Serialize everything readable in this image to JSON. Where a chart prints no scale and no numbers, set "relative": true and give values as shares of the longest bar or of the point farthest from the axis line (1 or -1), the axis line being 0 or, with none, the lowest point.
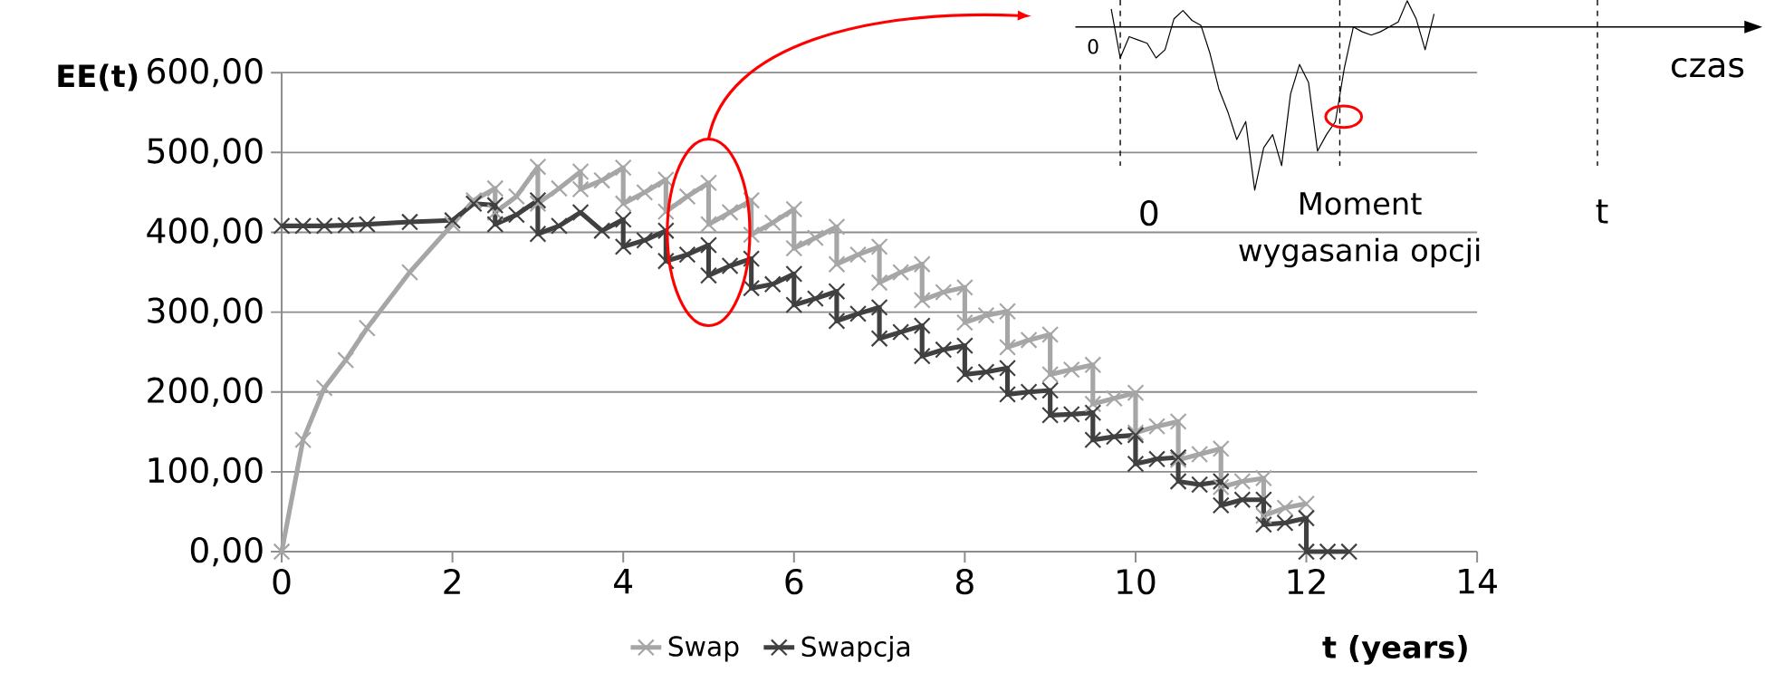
{
  "chart_data": [
    {
      "type": "line",
      "xlabel": "t (years)",
      "ylabel": "EE(t)",
      "xlim": [
        0,
        14
      ],
      "xticks": [
        0,
        2,
        4,
        6,
        8,
        10,
        12,
        14
      ],
      "ylim": [
        0,
        600
      ],
      "yticks": [
        {
          "value": 0,
          "label": "0,00"
        },
        {
          "value": 100,
          "label": "100,00"
        },
        {
          "value": 200,
          "label": "200,00"
        },
        {
          "value": 300,
          "label": "300,00"
        },
        {
          "value": 400,
          "label": "400,00"
        },
        {
          "value": 500,
          "label": "500,00"
        },
        {
          "value": 600,
          "label": "600,00"
        }
      ],
      "grid": "y",
      "legend": "bottom",
      "marker": "cross",
      "line_style": "solid",
      "series": [
        {
          "name": "Swap",
          "color": "#a6a6a6",
          "x": [
            0,
            0.25,
            0.5,
            0.75,
            1,
            1.5,
            2,
            2.25,
            2.5,
            2.5,
            2.75,
            3,
            3,
            3.25,
            3.5,
            3.5,
            3.75,
            4,
            4,
            4.25,
            4.5,
            4.5,
            4.75,
            5,
            5,
            5.25,
            5.5,
            5.5,
            5.75,
            6,
            6,
            6.25,
            6.5,
            6.5,
            6.75,
            7,
            7,
            7.25,
            7.5,
            7.5,
            7.75,
            8,
            8,
            8.25,
            8.5,
            8.5,
            8.75,
            9,
            9,
            9.25,
            9.5,
            9.5,
            9.75,
            10,
            10,
            10.25,
            10.5,
            10.5,
            10.75,
            11,
            11,
            11.25,
            11.5,
            11.5,
            11.75,
            12
          ],
          "values": [
            0,
            140,
            205,
            240,
            280,
            350,
            410,
            440,
            455,
            425,
            445,
            482,
            436,
            455,
            476,
            454,
            465,
            481,
            436,
            450,
            466,
            426,
            445,
            462,
            410,
            425,
            440,
            397,
            412,
            429,
            380,
            393,
            407,
            360,
            372,
            382,
            337,
            350,
            360,
            315,
            325,
            331,
            287,
            296,
            301,
            256,
            265,
            272,
            222,
            228,
            234,
            185,
            192,
            199,
            149,
            157,
            163,
            115,
            122,
            129,
            81,
            88,
            92,
            45,
            55,
            60
          ]
        },
        {
          "name": "Swapcja",
          "color": "#404040",
          "x": [
            0,
            0.25,
            0.5,
            0.75,
            1,
            1.5,
            2,
            2.25,
            2.5,
            2.5,
            2.75,
            3,
            3,
            3.25,
            3.5,
            3.75,
            4,
            4,
            4.25,
            4.5,
            4.5,
            4.75,
            5,
            5,
            5.25,
            5.5,
            5.5,
            5.75,
            6,
            6,
            6.25,
            6.5,
            6.5,
            6.75,
            7,
            7,
            7.25,
            7.5,
            7.5,
            7.75,
            8,
            8,
            8.25,
            8.5,
            8.5,
            8.75,
            9,
            9,
            9.25,
            9.5,
            9.5,
            9.75,
            10,
            10,
            10.25,
            10.5,
            10.5,
            10.75,
            11,
            11,
            11.25,
            11.5,
            11.5,
            11.75,
            12,
            12,
            12.25,
            12.5
          ],
          "values": [
            408,
            408,
            408,
            409,
            410,
            413,
            415,
            436,
            434,
            410,
            422,
            440,
            398,
            408,
            425,
            402,
            416,
            382,
            390,
            402,
            364,
            372,
            384,
            346,
            358,
            367,
            330,
            335,
            348,
            309,
            317,
            326,
            289,
            298,
            306,
            267,
            275,
            283,
            245,
            253,
            258,
            222,
            225,
            230,
            197,
            200,
            202,
            171,
            172,
            174,
            140,
            144,
            146,
            110,
            116,
            118,
            88,
            84,
            88,
            58,
            65,
            65,
            34,
            36,
            42,
            0,
            0,
            0
          ]
        }
      ]
    },
    {
      "type": "line",
      "relative": true,
      "categories": [
        null,
        null,
        null,
        null,
        null,
        null,
        null,
        null,
        null,
        null,
        null,
        null,
        null,
        null,
        null,
        null,
        null,
        null,
        null,
        null,
        null,
        null,
        null,
        null,
        null,
        null,
        null,
        null,
        null,
        null,
        null,
        null,
        null,
        null,
        null,
        null,
        null
      ],
      "series": [
        {
          "color": "#000000",
          "values": [
            0.11,
            -0.19,
            -0.06,
            -0.08,
            -0.1,
            -0.19,
            -0.14,
            0.05,
            0.1,
            0.04,
            0.01,
            -0.16,
            -0.38,
            -0.52,
            -0.69,
            -0.58,
            -1,
            -0.74,
            -0.66,
            -0.85,
            -0.41,
            -0.23,
            -0.34,
            -0.76,
            -0.66,
            -0.58,
            -0.25,
            0,
            -0.03,
            -0.05,
            -0.03,
            0,
            0.03,
            0.16,
            0.05,
            -0.14,
            0.08
          ]
        }
      ],
      "annotations": [
        "0",
        "czas",
        "0",
        "Moment wygasania opcji",
        "t"
      ]
    }
  ]
}
